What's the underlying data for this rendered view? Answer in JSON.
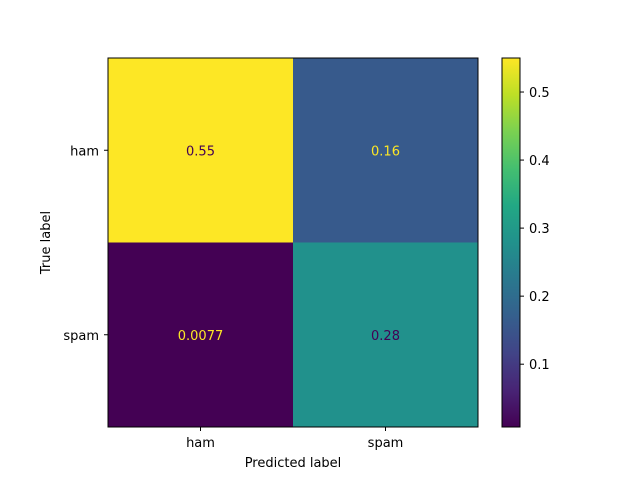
{
  "chart_data": {
    "type": "heatmap",
    "title": "",
    "xlabel": "Predicted label",
    "ylabel": "True label",
    "x_categories": [
      "ham",
      "spam"
    ],
    "y_categories": [
      "ham",
      "spam"
    ],
    "values": [
      [
        0.55,
        0.16
      ],
      [
        0.0077,
        0.28
      ]
    ],
    "value_labels": [
      [
        "0.55",
        "0.16"
      ],
      [
        "0.0077",
        "0.28"
      ]
    ],
    "colormap": "viridis",
    "colorbar": {
      "range": [
        0.0077,
        0.55
      ],
      "ticks": [
        0.1,
        0.2,
        0.3,
        0.4,
        0.5
      ],
      "tick_labels": [
        "0.1",
        "0.2",
        "0.3",
        "0.4",
        "0.5"
      ]
    },
    "grid": false
  }
}
